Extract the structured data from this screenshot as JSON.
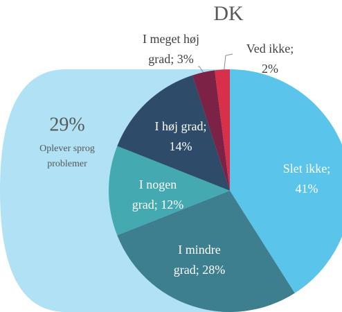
{
  "chart_data": {
    "type": "pie",
    "title": "DK",
    "values": [
      41,
      28,
      12,
      14,
      3,
      2
    ],
    "value_labels": [
      [
        "Slet ikke;",
        "41%"
      ],
      [
        "I mindre",
        "grad; 28%"
      ],
      [
        "I nogen",
        "grad; 12%"
      ],
      [
        "I høj grad;",
        "14%"
      ],
      [
        "I meget høj",
        "grad; 3%"
      ],
      [
        "Ved ikke;",
        "2%"
      ]
    ],
    "colors": [
      "#5bc4ea",
      "#3d7f8e",
      "#45a9b1",
      "#2e4c69",
      "#7b2246",
      "#d8304a"
    ],
    "annotation": {
      "value": "29%",
      "lines": [
        "Oplever sprog",
        "problemer"
      ]
    }
  }
}
